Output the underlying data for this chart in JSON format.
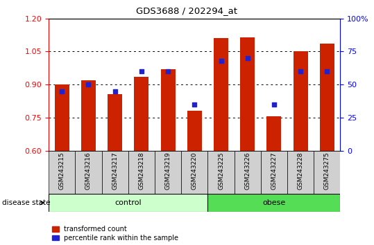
{
  "title": "GDS3688 / 202294_at",
  "samples": [
    "GSM243215",
    "GSM243216",
    "GSM243217",
    "GSM243218",
    "GSM243219",
    "GSM243220",
    "GSM243225",
    "GSM243226",
    "GSM243227",
    "GSM243228",
    "GSM243275"
  ],
  "red_values": [
    0.9,
    0.92,
    0.855,
    0.935,
    0.97,
    0.78,
    1.11,
    1.115,
    0.755,
    1.05,
    1.085
  ],
  "blue_percentiles": [
    45,
    50,
    45,
    60,
    60,
    35,
    68,
    70,
    35,
    60,
    60
  ],
  "ylim_left": [
    0.6,
    1.2
  ],
  "ylim_right": [
    0,
    100
  ],
  "yticks_left": [
    0.6,
    0.75,
    0.9,
    1.05,
    1.2
  ],
  "yticks_right": [
    0,
    25,
    50,
    75,
    100
  ],
  "ytick_labels_right": [
    "0",
    "25",
    "50",
    "75",
    "100%"
  ],
  "control_samples": 6,
  "obese_samples": 5,
  "control_color": "#ccffcc",
  "obese_color": "#55dd55",
  "bar_color": "#cc2200",
  "dot_color": "#2222cc",
  "bar_width": 0.55,
  "plot_bg_color": "#ffffff",
  "legend_red": "transformed count",
  "legend_blue": "percentile rank within the sample",
  "disease_state_label": "disease state"
}
